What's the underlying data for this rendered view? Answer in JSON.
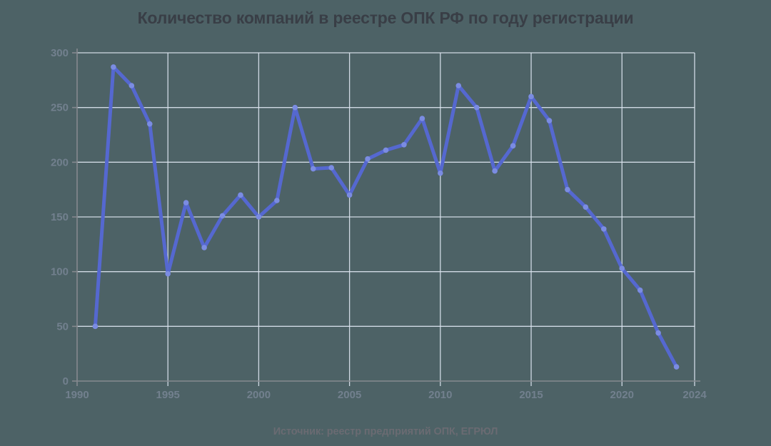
{
  "page": {
    "background_color": "#4d6266"
  },
  "chart_data": {
    "type": "line",
    "title": "Количество компаний в реестре ОПК РФ по году регистрации",
    "source_note": "Источник: реестр предприятий ОПК, ЕГРЮЛ",
    "series": [
      {
        "name": "Количество компаний",
        "x": [
          1991,
          1992,
          1993,
          1994,
          1995,
          1996,
          1997,
          1998,
          1999,
          2000,
          2001,
          2002,
          2003,
          2004,
          2005,
          2006,
          2007,
          2008,
          2009,
          2010,
          2011,
          2012,
          2013,
          2014,
          2015,
          2016,
          2017,
          2018,
          2019,
          2020,
          2021,
          2022,
          2023
        ],
        "values": [
          50,
          287,
          270,
          235,
          98,
          163,
          122,
          151,
          170,
          150,
          165,
          250,
          194,
          195,
          170,
          203,
          211,
          216,
          240,
          190,
          270,
          250,
          192,
          215,
          260,
          238,
          175,
          159,
          139,
          103,
          83,
          44,
          13
        ]
      }
    ],
    "xlabel": "",
    "ylabel": "",
    "xlim": [
      1990,
      2024
    ],
    "ylim": [
      0,
      300
    ],
    "x_ticks": [
      1990,
      1995,
      2000,
      2005,
      2010,
      2015,
      2020,
      2024
    ],
    "y_ticks": [
      0,
      50,
      100,
      150,
      200,
      250,
      300
    ],
    "grid": true,
    "legend_position": "none",
    "colors": {
      "line": "#5568d0",
      "marker": "#7b8ce2",
      "grid": "#dbe4ef",
      "axis": "#85898f",
      "tick_label": "#72808e",
      "title": "#393e46",
      "source": "#6a6b72"
    }
  }
}
